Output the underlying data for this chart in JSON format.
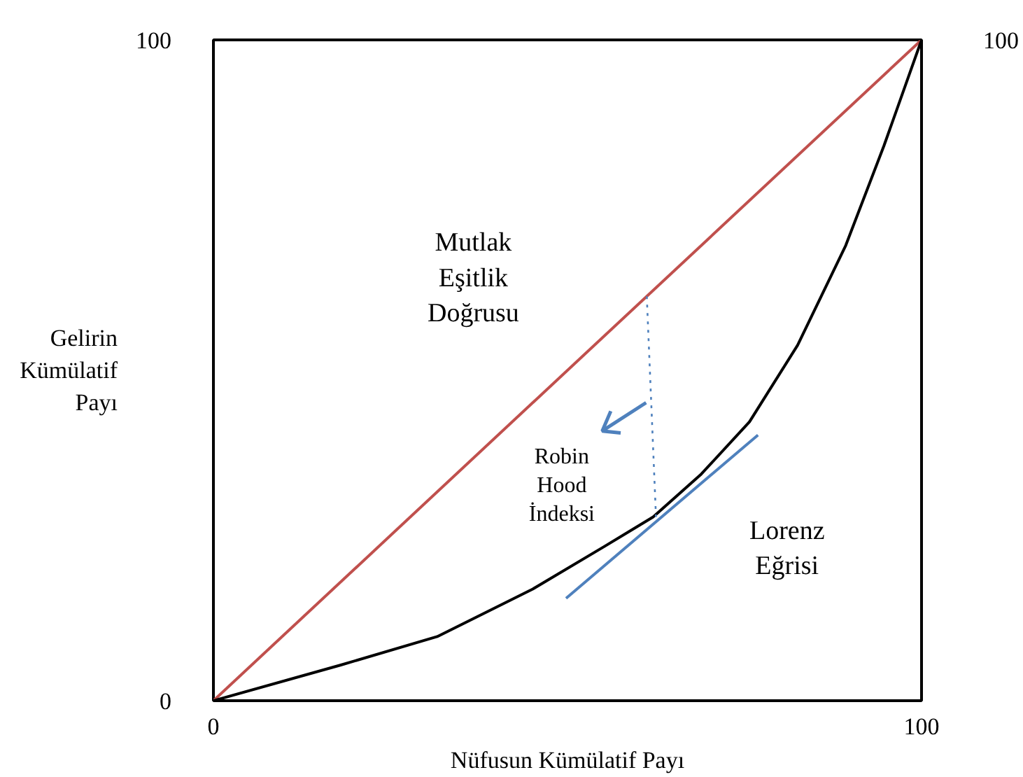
{
  "chart_data": {
    "type": "line",
    "xlabel": "Nüfusun Kümülatif Payı",
    "ylabel": "Gelirin\nKümülatif\nPayı",
    "xlim": [
      0,
      100
    ],
    "ylim": [
      0,
      100
    ],
    "xticks": [
      0,
      100
    ],
    "yticks": [
      0,
      100
    ],
    "series": [
      {
        "color": "#c0504d",
        "line_style": "solid",
        "x": [
          0,
          100
        ],
        "values": [
          0,
          100
        ]
      },
      {
        "color": "#000000",
        "line_style": "solid",
        "x": [
          0,
          18,
          31.6,
          45.1,
          55.3,
          62.1,
          68.9,
          75.7,
          82.5,
          89.3,
          94.7,
          100
        ],
        "values": [
          0,
          5.4,
          9.7,
          16.9,
          23.4,
          27.8,
          34.3,
          42.2,
          53.8,
          68.9,
          84.0,
          100
        ]
      },
      {
        "color": "#4f81bd",
        "line_style": "solid",
        "x": [
          49.8,
          76.9
        ],
        "values": [
          15.5,
          40.2
        ]
      },
      {
        "color": "#4f81bd",
        "line_style": "dotted",
        "x": [
          61.2,
          62.5
        ],
        "values": [
          61.2,
          27.8
        ]
      }
    ],
    "annotations": [
      "100",
      "Mutlak\nEşitlik\nDoğrusu",
      {
        "text": "Robin\nHood\nİndeksi",
        "x": 61.1,
        "y": 45.1
      },
      "Lorenz\nEğrisi"
    ]
  }
}
